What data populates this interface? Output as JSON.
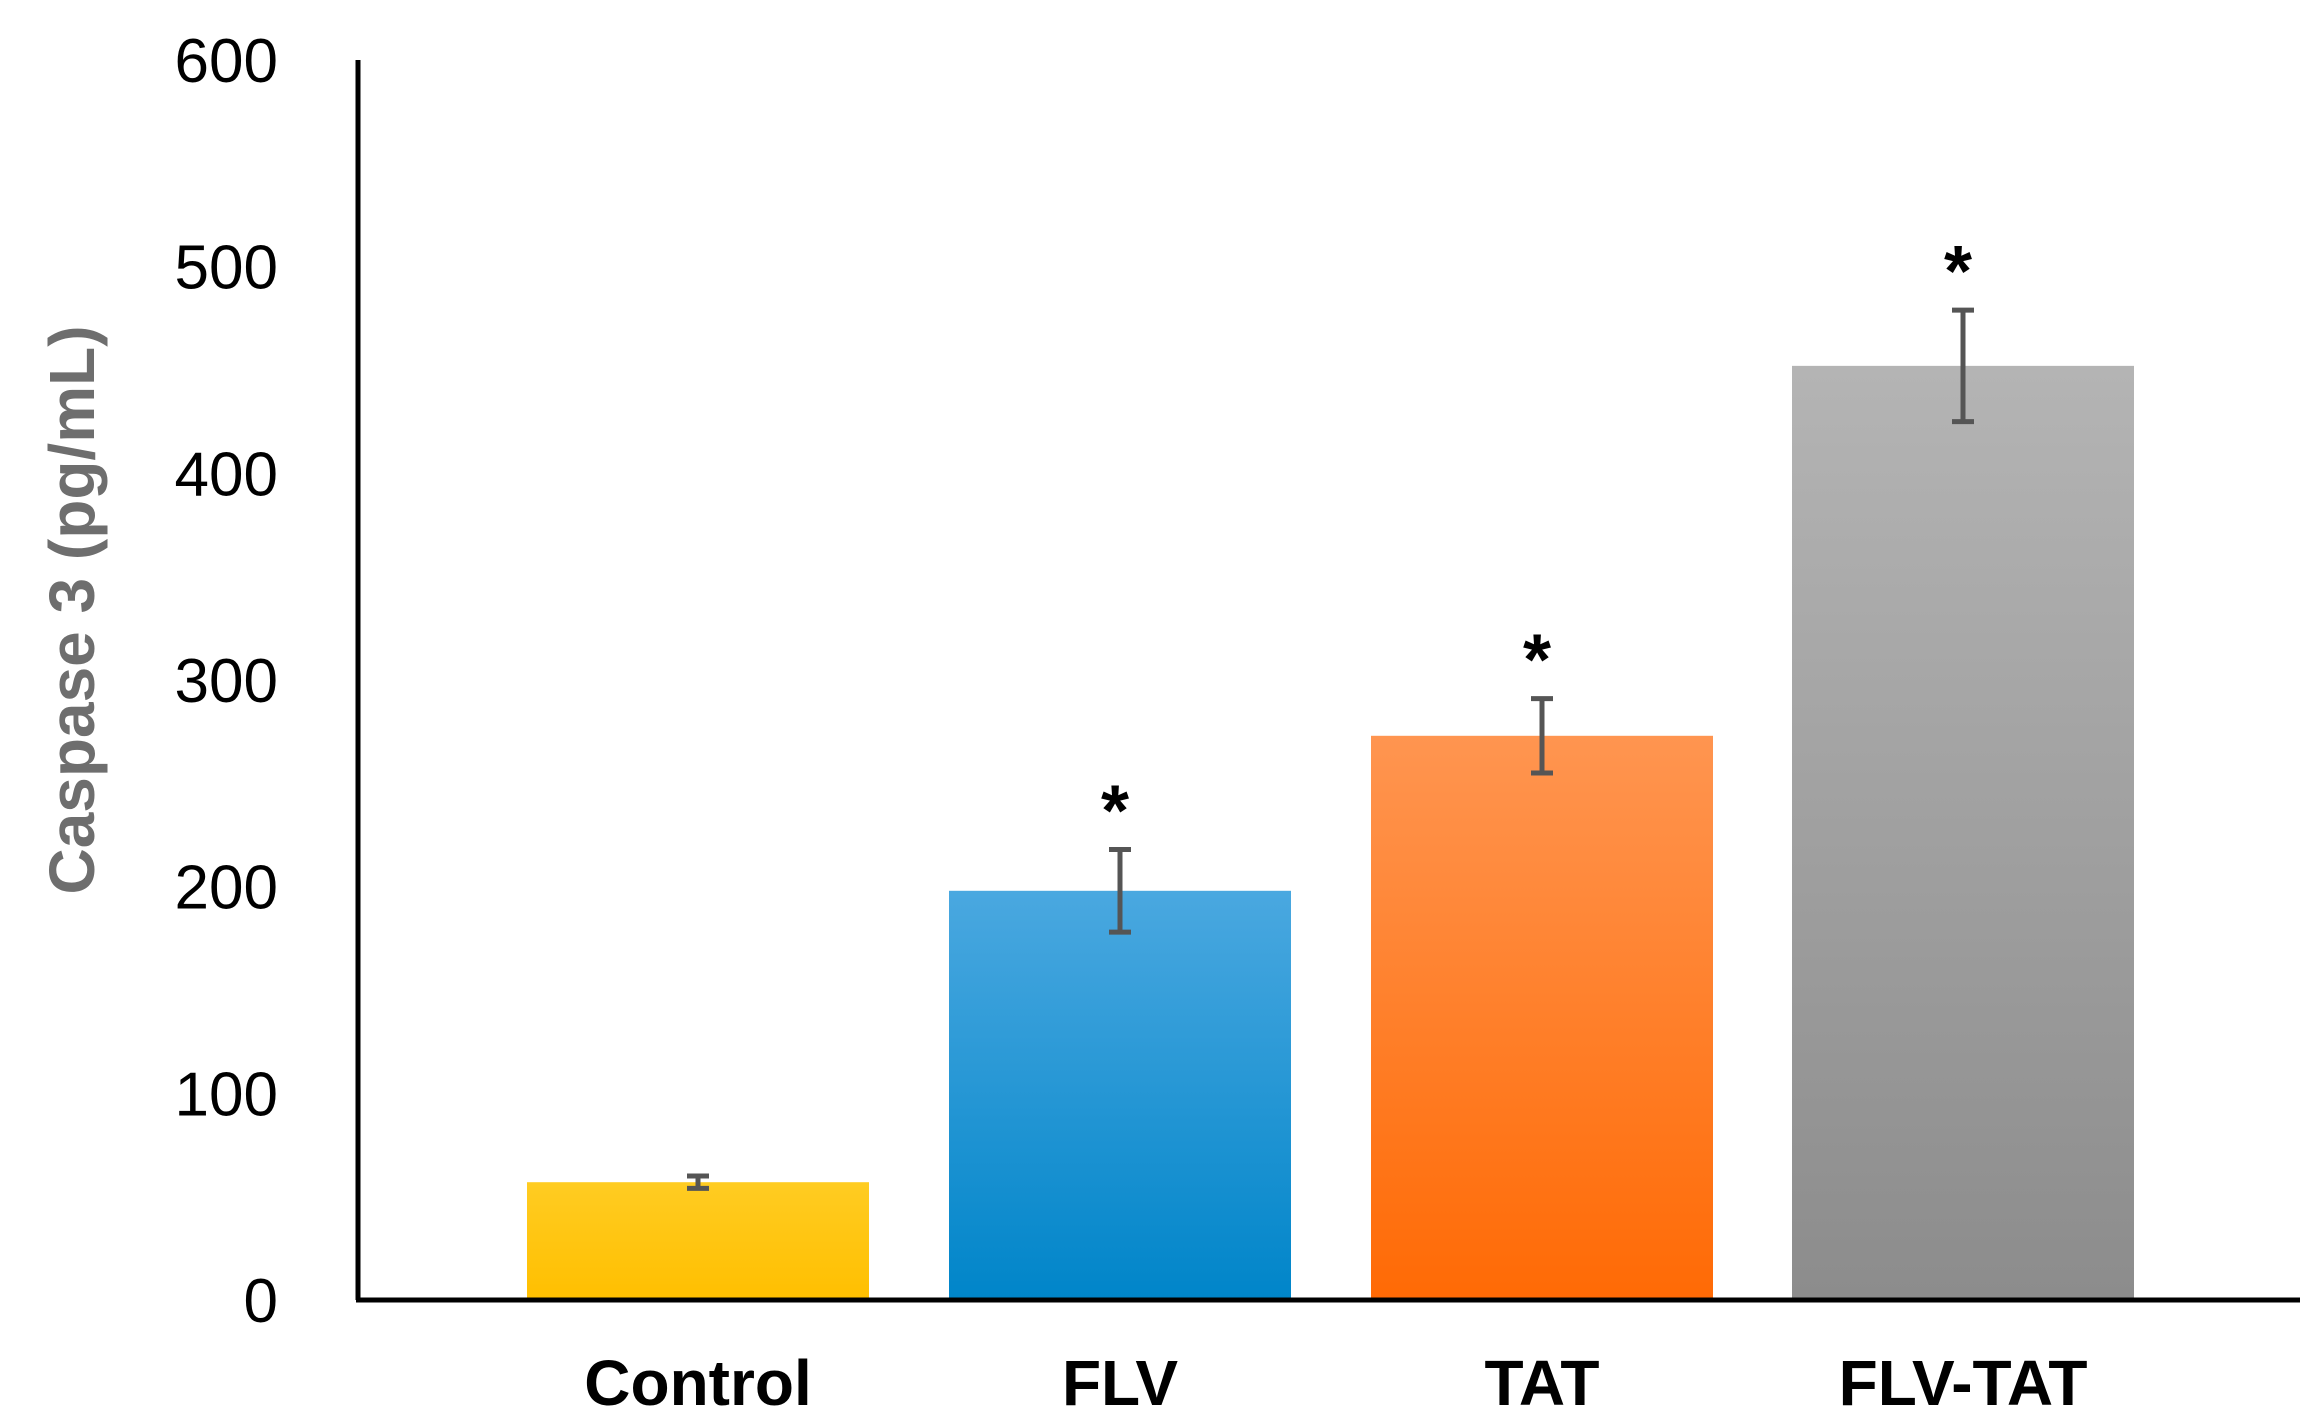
{
  "chart_data": {
    "type": "bar",
    "title": "",
    "xlabel": "",
    "ylabel": "Caspase 3 (pg/mL)",
    "ylim": [
      0,
      600
    ],
    "yticks": [
      0,
      100,
      200,
      300,
      400,
      500,
      600
    ],
    "ytick_labels": [
      "0",
      "100",
      "200",
      "300",
      "400",
      "500",
      "600"
    ],
    "grid": false,
    "categories": [
      "Control",
      "FLV",
      "TAT",
      "FLV-TAT"
    ],
    "values": [
      57,
      198,
      273,
      452
    ],
    "errors": [
      3,
      20,
      18,
      27
    ],
    "significance": [
      "",
      "*",
      "*",
      "*"
    ],
    "colors": [
      {
        "top": "#ffcc22",
        "bottom": "#ffbf00"
      },
      {
        "top": "#4aa8e0",
        "bottom": "#0085c9"
      },
      {
        "top": "#ff9550",
        "bottom": "#ff6a05"
      },
      {
        "top": "#b4b4b4",
        "bottom": "#8c8c8c"
      }
    ],
    "error_bar_color": "#555555",
    "axis_color": "#000000"
  }
}
